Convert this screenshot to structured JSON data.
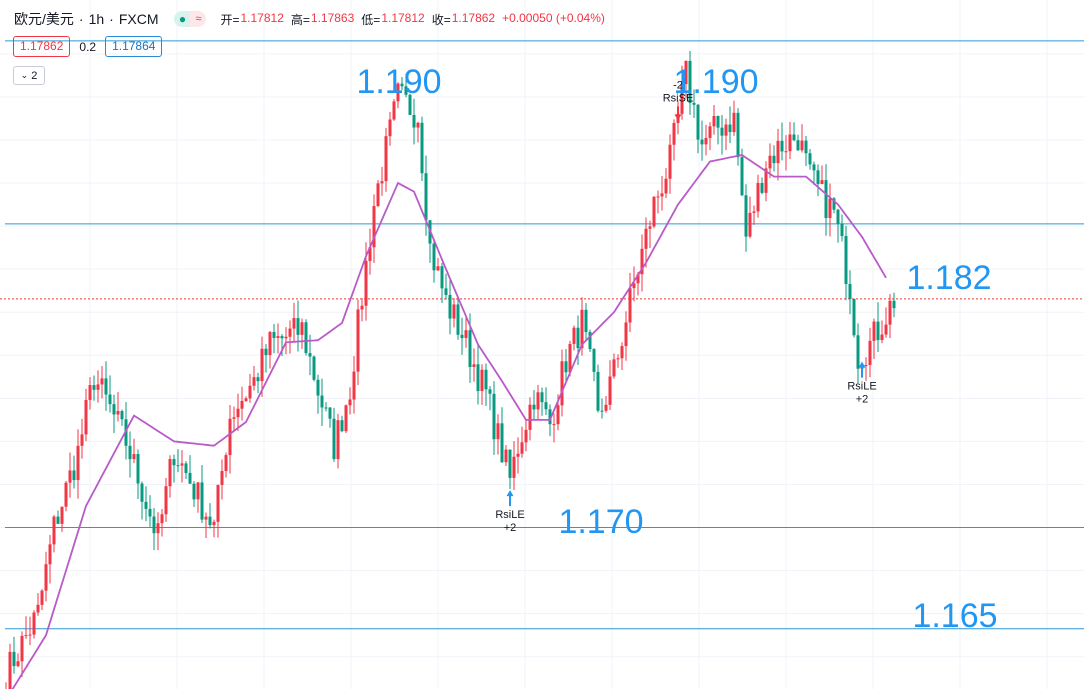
{
  "header": {
    "symbol": "欧元/美元",
    "interval": "1h",
    "source": "FXCM",
    "separator": "·",
    "pill_icons": [
      "eye-icon",
      "wave-icon"
    ],
    "ohlc": [
      {
        "label": "开=",
        "value": "1.17812"
      },
      {
        "label": "高=",
        "value": "1.17863"
      },
      {
        "label": "低=",
        "value": "1.17812"
      },
      {
        "label": "收=",
        "value": "1.17862"
      },
      {
        "label": "",
        "value": "+0.00050 (+0.04%)"
      }
    ]
  },
  "quotes": {
    "bid": "1.17862",
    "spread": "0.2",
    "ask": "1.17864"
  },
  "indicator_toggle": {
    "label": "2",
    "icon": "chevron-down-icon"
  },
  "colors": {
    "up": "#f23645",
    "down": "#089981",
    "ma": "#b95ac9",
    "level_line": "#2a9ad4",
    "level_text": "#2196f3",
    "current_price_line": "#e53935"
  },
  "chart_data": {
    "type": "candlestick",
    "instrument": "欧元/美元",
    "timeframe": "1h",
    "ylim": [
      1.1605,
      1.1925
    ],
    "level_labels": [
      "1.190",
      "1.190",
      "1.182",
      "1.170",
      "1.165"
    ],
    "horizontal_levels": [
      1.1906,
      1.1821,
      1.168,
      1.1633
    ],
    "current_price": 1.17862,
    "signals": [
      {
        "text": "RsiLE",
        "qty": "+2",
        "bar": 126,
        "side": "buy"
      },
      {
        "text": "RsiSE",
        "qty": "-2",
        "bar": 168,
        "side": "sell"
      },
      {
        "text": "RsiLE",
        "qty": "+2",
        "bar": 214,
        "side": "buy"
      }
    ],
    "candle_anchors": [
      [
        0,
        1.1612
      ],
      [
        8,
        1.164
      ],
      [
        12,
        1.168
      ],
      [
        18,
        1.1715
      ],
      [
        22,
        1.175
      ],
      [
        30,
        1.172
      ],
      [
        38,
        1.1675
      ],
      [
        42,
        1.1716
      ],
      [
        52,
        1.168
      ],
      [
        56,
        1.1732
      ],
      [
        62,
        1.1748
      ],
      [
        66,
        1.1765
      ],
      [
        74,
        1.1772
      ],
      [
        78,
        1.1744
      ],
      [
        82,
        1.1718
      ],
      [
        86,
        1.1745
      ],
      [
        92,
        1.183
      ],
      [
        98,
        1.188
      ],
      [
        103,
        1.1872
      ],
      [
        106,
        1.181
      ],
      [
        110,
        1.1785
      ],
      [
        114,
        1.177
      ],
      [
        120,
        1.1742
      ],
      [
        126,
        1.1702
      ],
      [
        128,
        1.1718
      ],
      [
        132,
        1.1742
      ],
      [
        136,
        1.1728
      ],
      [
        140,
        1.1758
      ],
      [
        144,
        1.1775
      ],
      [
        147,
        1.1745
      ],
      [
        148,
        1.173
      ],
      [
        152,
        1.1752
      ],
      [
        156,
        1.1785
      ],
      [
        162,
        1.183
      ],
      [
        166,
        1.185
      ],
      [
        170,
        1.189
      ],
      [
        174,
        1.1858
      ],
      [
        178,
        1.1866
      ],
      [
        182,
        1.187
      ],
      [
        185,
        1.1815
      ],
      [
        190,
        1.185
      ],
      [
        194,
        1.1858
      ],
      [
        198,
        1.1862
      ],
      [
        201,
        1.1842
      ],
      [
        207,
        1.1826
      ],
      [
        211,
        1.1792
      ],
      [
        213,
        1.176
      ],
      [
        216,
        1.1765
      ],
      [
        222,
        1.1786
      ]
    ],
    "ma_anchors": [
      [
        0,
        1.16
      ],
      [
        10,
        1.163
      ],
      [
        20,
        1.169
      ],
      [
        32,
        1.1732
      ],
      [
        42,
        1.172
      ],
      [
        52,
        1.1718
      ],
      [
        60,
        1.1729
      ],
      [
        70,
        1.1766
      ],
      [
        78,
        1.1767
      ],
      [
        84,
        1.1775
      ],
      [
        90,
        1.1806
      ],
      [
        98,
        1.184
      ],
      [
        102,
        1.1836
      ],
      [
        110,
        1.18
      ],
      [
        118,
        1.1765
      ],
      [
        124,
        1.1748
      ],
      [
        130,
        1.173
      ],
      [
        136,
        1.173
      ],
      [
        144,
        1.1765
      ],
      [
        152,
        1.178
      ],
      [
        160,
        1.1803
      ],
      [
        168,
        1.183
      ],
      [
        176,
        1.185
      ],
      [
        184,
        1.1853
      ],
      [
        192,
        1.1843
      ],
      [
        200,
        1.1843
      ],
      [
        208,
        1.183
      ],
      [
        214,
        1.1815
      ],
      [
        220,
        1.1796
      ]
    ]
  }
}
